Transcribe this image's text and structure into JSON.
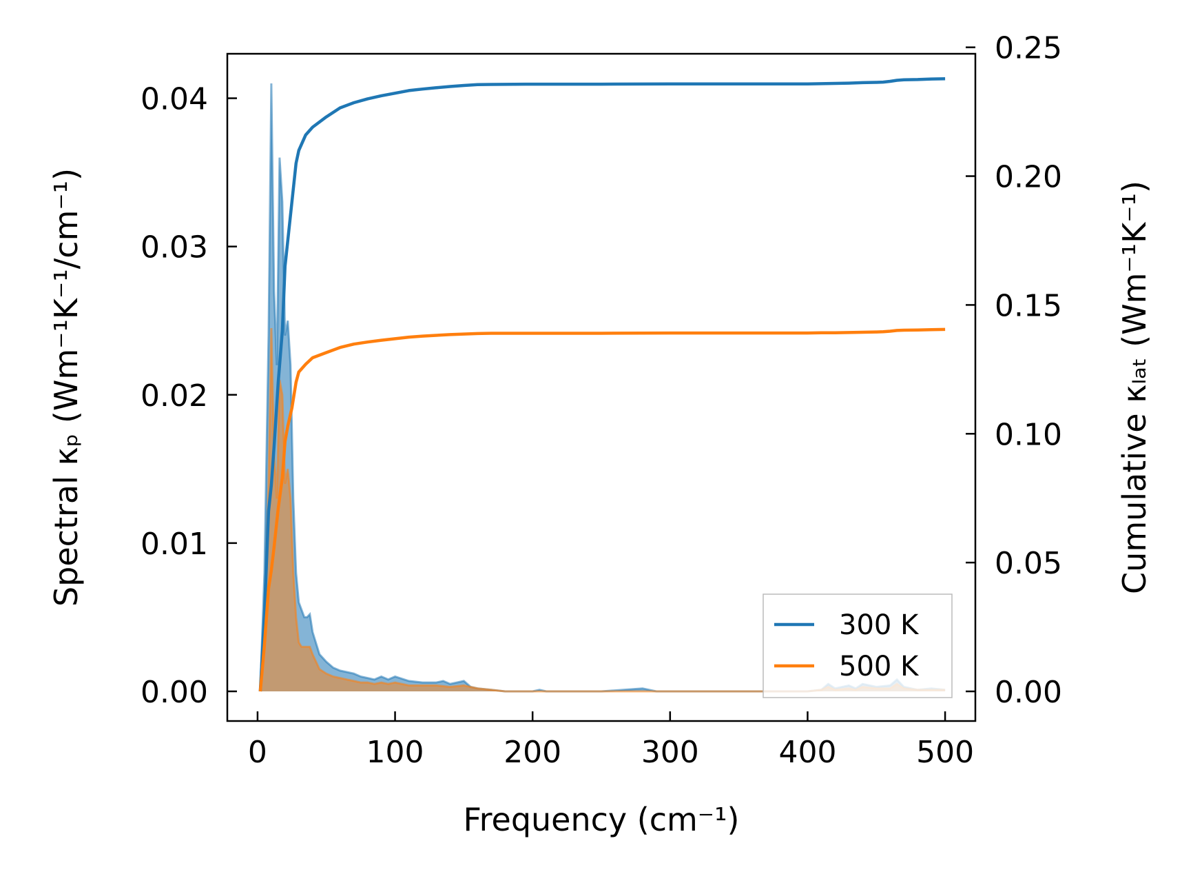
{
  "chart_data": {
    "type": "line",
    "xlabel": "Frequency (cm⁻¹)",
    "ylabel_left": "Spectral κₚ (Wm⁻¹K⁻¹/cm⁻¹)",
    "ylabel_right": "Cumulative κₗₐₜ (Wm⁻¹K⁻¹)",
    "xlim": [
      -22,
      522
    ],
    "ylim_left": [
      -0.002,
      0.043
    ],
    "ylim_right": [
      -0.0115,
      0.2475
    ],
    "xticks": [
      0,
      100,
      200,
      300,
      400,
      500
    ],
    "xtick_labels": [
      "0",
      "100",
      "200",
      "300",
      "400",
      "500"
    ],
    "yticks_left": [
      0.0,
      0.01,
      0.02,
      0.03,
      0.04
    ],
    "ytick_labels_left": [
      "0.00",
      "0.01",
      "0.02",
      "0.03",
      "0.04"
    ],
    "yticks_right": [
      0.0,
      0.05,
      0.1,
      0.15,
      0.2,
      0.25
    ],
    "ytick_labels_right": [
      "0.00",
      "0.05",
      "0.10",
      "0.15",
      "0.20",
      "0.25"
    ],
    "grid": false,
    "legend_position": "lower-right",
    "colors": {
      "series_300": "#1f77b4",
      "series_500": "#ff7f0e"
    },
    "series": [
      {
        "name": "300 K",
        "color": "#1f77b4",
        "spectral": {
          "x": [
            2,
            5,
            8,
            10,
            12,
            14,
            16,
            18,
            20,
            22,
            24,
            26,
            28,
            30,
            32,
            34,
            36,
            38,
            40,
            45,
            50,
            55,
            60,
            65,
            70,
            75,
            80,
            85,
            90,
            95,
            100,
            110,
            120,
            130,
            135,
            140,
            145,
            150,
            155,
            160,
            170,
            180,
            200,
            205,
            210,
            250,
            280,
            290,
            300,
            350,
            400,
            410,
            415,
            420,
            430,
            435,
            440,
            450,
            460,
            465,
            470,
            480,
            490,
            500
          ],
          "y": [
            0.0002,
            0.008,
            0.024,
            0.041,
            0.027,
            0.022,
            0.036,
            0.033,
            0.024,
            0.025,
            0.022,
            0.013,
            0.008,
            0.006,
            0.0055,
            0.005,
            0.005,
            0.0052,
            0.004,
            0.0025,
            0.002,
            0.0016,
            0.0014,
            0.0013,
            0.0012,
            0.001,
            0.0009,
            0.0008,
            0.001,
            0.0008,
            0.001,
            0.0007,
            0.0006,
            0.0006,
            0.0007,
            0.0005,
            0.0006,
            0.0007,
            0.0003,
            0.0002,
            0.0001,
            0.0,
            0.0,
            0.0001,
            0.0,
            0.0,
            0.0002,
            0.0,
            0.0,
            0.0,
            0.0,
            0.0001,
            0.0005,
            0.0002,
            0.0004,
            0.0002,
            0.0005,
            0.0003,
            0.0004,
            0.0008,
            0.0003,
            0.0001,
            0.0002,
            0.0001
          ]
        },
        "cumulative": {
          "x": [
            2,
            5,
            8,
            10,
            12,
            15,
            18,
            20,
            22,
            25,
            28,
            30,
            35,
            40,
            50,
            60,
            70,
            80,
            90,
            100,
            110,
            120,
            130,
            140,
            150,
            160,
            170,
            200,
            250,
            300,
            350,
            400,
            410,
            420,
            430,
            440,
            450,
            455,
            460,
            465,
            470,
            480,
            490,
            500
          ],
          "y": [
            0.0,
            0.03,
            0.07,
            0.08,
            0.095,
            0.12,
            0.14,
            0.165,
            0.175,
            0.19,
            0.205,
            0.21,
            0.216,
            0.219,
            0.223,
            0.2265,
            0.2285,
            0.23,
            0.2312,
            0.2322,
            0.2332,
            0.2338,
            0.2343,
            0.2348,
            0.2352,
            0.2355,
            0.2356,
            0.2357,
            0.2357,
            0.2358,
            0.2358,
            0.2358,
            0.2359,
            0.236,
            0.2361,
            0.2363,
            0.2364,
            0.2365,
            0.2368,
            0.2372,
            0.2374,
            0.2375,
            0.2377,
            0.2378
          ]
        }
      },
      {
        "name": "500 K",
        "color": "#ff7f0e",
        "spectral": {
          "x": [
            2,
            5,
            8,
            10,
            12,
            14,
            16,
            18,
            20,
            22,
            24,
            26,
            28,
            30,
            32,
            34,
            36,
            38,
            40,
            45,
            50,
            55,
            60,
            65,
            70,
            75,
            80,
            85,
            90,
            95,
            100,
            110,
            120,
            130,
            140,
            150,
            160,
            170,
            180,
            200,
            250,
            300,
            350,
            400,
            410,
            415,
            420,
            430,
            435,
            440,
            450,
            460,
            465,
            470,
            480,
            490,
            500
          ],
          "y": [
            0.0001,
            0.005,
            0.014,
            0.0245,
            0.016,
            0.013,
            0.021,
            0.02,
            0.014,
            0.015,
            0.013,
            0.008,
            0.005,
            0.0033,
            0.003,
            0.003,
            0.003,
            0.003,
            0.0025,
            0.0015,
            0.0012,
            0.001,
            0.0009,
            0.0008,
            0.0007,
            0.0006,
            0.0006,
            0.0005,
            0.0006,
            0.0005,
            0.0006,
            0.0004,
            0.0004,
            0.0004,
            0.0003,
            0.0004,
            0.0002,
            0.0001,
            0.0,
            0.0,
            0.0,
            0.0,
            0.0,
            0.0,
            0.0001,
            0.0003,
            0.0001,
            0.0002,
            0.0001,
            0.0003,
            0.0002,
            0.0002,
            0.0005,
            0.0002,
            0.0001,
            0.0001,
            0.0001
          ]
        },
        "cumulative": {
          "x": [
            2,
            5,
            8,
            10,
            12,
            15,
            18,
            20,
            22,
            25,
            28,
            30,
            35,
            40,
            50,
            60,
            70,
            80,
            90,
            100,
            110,
            120,
            130,
            140,
            150,
            160,
            170,
            200,
            250,
            300,
            350,
            400,
            410,
            420,
            430,
            440,
            450,
            455,
            460,
            465,
            470,
            480,
            490,
            500
          ],
          "y": [
            0.0,
            0.018,
            0.04,
            0.047,
            0.056,
            0.071,
            0.083,
            0.097,
            0.103,
            0.11,
            0.12,
            0.124,
            0.127,
            0.1295,
            0.1315,
            0.1335,
            0.1348,
            0.1356,
            0.1363,
            0.1369,
            0.1375,
            0.1379,
            0.1382,
            0.1385,
            0.1387,
            0.1389,
            0.139,
            0.139,
            0.139,
            0.1391,
            0.1391,
            0.1391,
            0.1392,
            0.1392,
            0.1393,
            0.1394,
            0.1395,
            0.1396,
            0.1398,
            0.1401,
            0.1402,
            0.1403,
            0.1404,
            0.1405
          ]
        }
      }
    ]
  }
}
